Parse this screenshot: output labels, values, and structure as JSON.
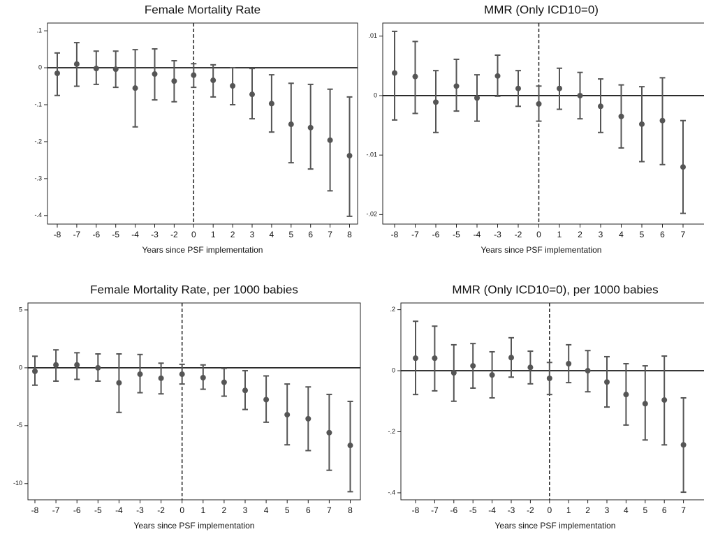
{
  "chart_data": [
    {
      "type": "errorbar",
      "title": "Female Mortality Rate",
      "xlabel": "Years since PSF implementation",
      "color": "#555555",
      "categories": [
        "-8",
        "-7",
        "-6",
        "-5",
        "-4",
        "-3",
        "-2",
        "0",
        "1",
        "2",
        "3",
        "4",
        "5",
        "6",
        "7",
        "8"
      ],
      "values": [
        -0.015,
        0.01,
        -0.002,
        -0.004,
        -0.055,
        -0.017,
        -0.036,
        -0.02,
        -0.034,
        -0.049,
        -0.072,
        -0.097,
        -0.153,
        -0.162,
        -0.196,
        -0.238
      ],
      "lower": [
        -0.075,
        -0.05,
        -0.045,
        -0.053,
        -0.16,
        -0.087,
        -0.092,
        -0.053,
        -0.079,
        -0.1,
        -0.138,
        -0.174,
        -0.257,
        -0.274,
        -0.333,
        -0.402
      ],
      "upper": [
        0.04,
        0.068,
        0.045,
        0.045,
        0.049,
        0.051,
        0.019,
        0.011,
        0.008,
        0,
        -0.002,
        -0.019,
        -0.042,
        -0.045,
        -0.058,
        -0.079
      ],
      "ylim": [
        -0.423,
        0.121
      ],
      "yticks": [
        {
          "value": 0.1,
          "label": ".1"
        },
        0,
        {
          "value": -0.1,
          "label": "-.1"
        },
        {
          "value": -0.2,
          "label": "-.2"
        },
        {
          "value": -0.3,
          "label": "-.3"
        },
        {
          "value": -0.4,
          "label": "-.4"
        }
      ],
      "hline": 0,
      "vline": "0"
    },
    {
      "type": "errorbar",
      "title": "MMR (Only ICD10=0)",
      "xlabel": "Years since PSF implementation",
      "color": "#555555",
      "categories": [
        "-8",
        "-7",
        "-6",
        "-5",
        "-4",
        "-3",
        "-2",
        "0",
        "1",
        "2",
        "3",
        "4",
        "5",
        "6",
        "7"
      ],
      "values": [
        0.0038,
        0.0032,
        -0.0011,
        0.0016,
        -0.0004,
        0.0033,
        0.0012,
        -0.0014,
        0.0012,
        0,
        -0.0018,
        -0.0035,
        -0.0048,
        -0.0042,
        -0.012
      ],
      "lower": [
        -0.0041,
        -0.003,
        -0.0062,
        -0.0026,
        -0.0043,
        -0.0001,
        -0.0018,
        -0.0043,
        -0.0023,
        -0.0039,
        -0.0062,
        -0.0088,
        -0.0111,
        -0.0116,
        -0.0198
      ],
      "upper": [
        0.0108,
        0.0091,
        0.0042,
        0.0061,
        0.0035,
        0.0068,
        0.0042,
        0.0016,
        0.0046,
        0.0039,
        0.0028,
        0.0018,
        0.0015,
        0.003,
        -0.0042
      ],
      "ylim": [
        -0.0216,
        0.0122
      ],
      "yticks": [
        {
          "value": 0.01,
          "label": ".01"
        },
        0,
        {
          "value": -0.01,
          "label": "-.01"
        },
        {
          "value": -0.02,
          "label": "-.02"
        }
      ],
      "hline": 0,
      "vline": "0"
    },
    {
      "type": "errorbar",
      "title": "Female Mortality Rate, per 1000 babies",
      "xlabel": "Years since PSF implementation",
      "color": "#555555",
      "categories": [
        "-8",
        "-7",
        "-6",
        "-5",
        "-4",
        "-3",
        "-2",
        "0",
        "1",
        "2",
        "3",
        "4",
        "5",
        "6",
        "7",
        "8"
      ],
      "values": [
        -0.3,
        0.25,
        0.25,
        0,
        -1.3,
        -0.55,
        -0.9,
        -0.55,
        -0.85,
        -1.25,
        -1.95,
        -2.75,
        -4.05,
        -4.4,
        -5.6,
        -6.7
      ],
      "lower": [
        -1.5,
        -1.15,
        -1,
        -1.15,
        -3.85,
        -2.15,
        -2.25,
        -1.4,
        -1.85,
        -2.45,
        -3.6,
        -4.7,
        -6.65,
        -7.15,
        -8.85,
        -10.7
      ],
      "upper": [
        1,
        1.55,
        1.3,
        1.2,
        1.2,
        1.15,
        0.4,
        0.3,
        0.25,
        -0.05,
        -0.25,
        -0.7,
        -1.4,
        -1.65,
        -2.3,
        -2.9
      ],
      "ylim": [
        -11.4,
        5.6
      ],
      "yticks": [
        5,
        0,
        -5,
        -10
      ],
      "hline": 0,
      "vline": "0"
    },
    {
      "type": "errorbar",
      "title": "MMR (Only ICD10=0), per 1000 babies",
      "xlabel": "Years since PSF implementation",
      "color": "#555555",
      "categories": [
        "-8",
        "-7",
        "-6",
        "-5",
        "-4",
        "-3",
        "-2",
        "0",
        "1",
        "2",
        "3",
        "4",
        "5",
        "6",
        "7"
      ],
      "values": [
        0.041,
        0.041,
        -0.007,
        0.016,
        -0.014,
        0.043,
        0.011,
        -0.025,
        0.023,
        0,
        -0.037,
        -0.078,
        -0.108,
        -0.096,
        -0.243
      ],
      "lower": [
        -0.078,
        -0.066,
        -0.1,
        -0.057,
        -0.089,
        -0.021,
        -0.043,
        -0.078,
        -0.039,
        -0.069,
        -0.119,
        -0.178,
        -0.227,
        -0.243,
        -0.398
      ],
      "upper": [
        0.162,
        0.146,
        0.085,
        0.089,
        0.062,
        0.108,
        0.064,
        0.027,
        0.085,
        0.066,
        0.046,
        0.023,
        0.016,
        0.048,
        -0.089
      ],
      "ylim": [
        -0.423,
        0.222
      ],
      "yticks": [
        {
          "value": 0.2,
          "label": ".2"
        },
        0,
        {
          "value": -0.2,
          "label": "-.2"
        },
        {
          "value": -0.4,
          "label": "-.4"
        }
      ],
      "hline": 0,
      "vline": "0"
    }
  ]
}
